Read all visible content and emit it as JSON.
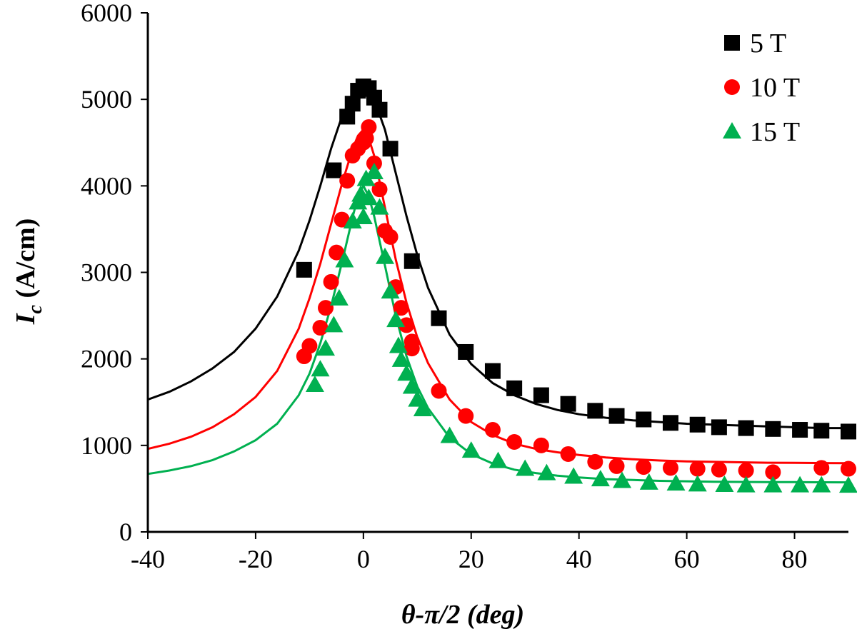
{
  "chart_data": {
    "type": "scatter",
    "title": "",
    "xlabel": "θ-π/2 (deg)",
    "ylabel_main": "I",
    "ylabel_sub": "c",
    "ylabel_units": " (A/cm)",
    "xlim": [
      -40,
      90
    ],
    "ylim": [
      0,
      6000
    ],
    "xticks": [
      -40,
      -20,
      0,
      20,
      40,
      60,
      80
    ],
    "yticks": [
      0,
      1000,
      2000,
      3000,
      4000,
      5000,
      6000
    ],
    "grid": false,
    "legend_position": "top-right",
    "series": [
      {
        "name": "5 T",
        "marker": "square",
        "color": "#000000",
        "points": [
          [
            -11,
            3030
          ],
          [
            -5.5,
            4180
          ],
          [
            -3,
            4800
          ],
          [
            -2,
            4950
          ],
          [
            -1,
            5100
          ],
          [
            0,
            5150
          ],
          [
            0.5,
            5120
          ],
          [
            1,
            5130
          ],
          [
            2,
            5020
          ],
          [
            3,
            4880
          ],
          [
            5,
            4430
          ],
          [
            9,
            3130
          ],
          [
            14,
            2470
          ],
          [
            19,
            2080
          ],
          [
            24,
            1860
          ],
          [
            28,
            1660
          ],
          [
            33,
            1580
          ],
          [
            38,
            1480
          ],
          [
            43,
            1400
          ],
          [
            47,
            1340
          ],
          [
            52,
            1300
          ],
          [
            57,
            1260
          ],
          [
            62,
            1240
          ],
          [
            66,
            1210
          ],
          [
            71,
            1200
          ],
          [
            76,
            1190
          ],
          [
            81,
            1180
          ],
          [
            85,
            1170
          ],
          [
            90,
            1160
          ]
        ],
        "fit_x": [
          -40,
          -36,
          -32,
          -28,
          -24,
          -20,
          -16,
          -12,
          -10,
          -8,
          -6,
          -4,
          -2,
          -1,
          0,
          1,
          2,
          4,
          6,
          8,
          10,
          12,
          16,
          20,
          24,
          28,
          32,
          36,
          40,
          45,
          50,
          55,
          60,
          65,
          70,
          75,
          80,
          85,
          90
        ],
        "fit_y": [
          1530,
          1620,
          1740,
          1890,
          2080,
          2350,
          2720,
          3250,
          3600,
          4000,
          4430,
          4800,
          5050,
          5100,
          5150,
          5100,
          5000,
          4650,
          4150,
          3650,
          3200,
          2820,
          2280,
          1940,
          1720,
          1580,
          1480,
          1410,
          1360,
          1320,
          1290,
          1270,
          1250,
          1240,
          1230,
          1220,
          1210,
          1200,
          1200
        ]
      },
      {
        "name": "10 T",
        "marker": "circle",
        "color": "#ff0000",
        "points": [
          [
            -11,
            2030
          ],
          [
            -10,
            2150
          ],
          [
            -8,
            2360
          ],
          [
            -7,
            2590
          ],
          [
            -6,
            2890
          ],
          [
            -5,
            3230
          ],
          [
            -4,
            3610
          ],
          [
            -3,
            4060
          ],
          [
            -2,
            4350
          ],
          [
            -1,
            4430
          ],
          [
            0,
            4500
          ],
          [
            0.5,
            4550
          ],
          [
            1,
            4680
          ],
          [
            2,
            4260
          ],
          [
            3,
            3960
          ],
          [
            4,
            3480
          ],
          [
            5,
            3410
          ],
          [
            6,
            2830
          ],
          [
            7,
            2590
          ],
          [
            8,
            2390
          ],
          [
            9,
            2200
          ],
          [
            9,
            2120
          ],
          [
            14,
            1630
          ],
          [
            19,
            1340
          ],
          [
            24,
            1180
          ],
          [
            28,
            1040
          ],
          [
            33,
            1000
          ],
          [
            38,
            900
          ],
          [
            43,
            810
          ],
          [
            47,
            760
          ],
          [
            52,
            750
          ],
          [
            57,
            740
          ],
          [
            62,
            730
          ],
          [
            66,
            720
          ],
          [
            71,
            710
          ],
          [
            76,
            690
          ],
          [
            85,
            740
          ],
          [
            90,
            730
          ]
        ],
        "fit_x": [
          -40,
          -36,
          -32,
          -28,
          -24,
          -20,
          -16,
          -12,
          -10,
          -8,
          -6,
          -4,
          -2,
          -1,
          0,
          1,
          2,
          4,
          6,
          8,
          10,
          12,
          16,
          20,
          24,
          28,
          32,
          36,
          40,
          45,
          50,
          55,
          60,
          65,
          70,
          75,
          80,
          85,
          90
        ],
        "fit_y": [
          960,
          1020,
          1100,
          1210,
          1360,
          1560,
          1860,
          2350,
          2700,
          3100,
          3560,
          4020,
          4430,
          4580,
          4650,
          4550,
          4350,
          3750,
          3150,
          2650,
          2250,
          1950,
          1530,
          1270,
          1120,
          1020,
          960,
          920,
          890,
          860,
          840,
          825,
          815,
          810,
          805,
          800,
          798,
          796,
          795
        ]
      },
      {
        "name": "15 T",
        "marker": "triangle",
        "color": "#00b050",
        "points": [
          [
            -9,
            1700
          ],
          [
            -8,
            1880
          ],
          [
            -7,
            2120
          ],
          [
            -5.5,
            2390
          ],
          [
            -4.5,
            2700
          ],
          [
            -3.5,
            3140
          ],
          [
            -2,
            3590
          ],
          [
            -1,
            3810
          ],
          [
            -0.5,
            3900
          ],
          [
            0,
            3640
          ],
          [
            0.5,
            4080
          ],
          [
            1,
            3860
          ],
          [
            2,
            4160
          ],
          [
            3,
            3750
          ],
          [
            4,
            3180
          ],
          [
            5,
            2780
          ],
          [
            6,
            2450
          ],
          [
            6.5,
            2150
          ],
          [
            7,
            1990
          ],
          [
            8,
            1830
          ],
          [
            9,
            1680
          ],
          [
            10,
            1530
          ],
          [
            11,
            1420
          ],
          [
            16,
            1110
          ],
          [
            20,
            940
          ],
          [
            25,
            820
          ],
          [
            30,
            730
          ],
          [
            34,
            680
          ],
          [
            39,
            640
          ],
          [
            44,
            610
          ],
          [
            48,
            590
          ],
          [
            53,
            570
          ],
          [
            58,
            560
          ],
          [
            62,
            550
          ],
          [
            67,
            545
          ],
          [
            71,
            540
          ],
          [
            76,
            540
          ],
          [
            81,
            540
          ],
          [
            85,
            540
          ],
          [
            90,
            535
          ]
        ],
        "fit_x": [
          -40,
          -36,
          -32,
          -28,
          -24,
          -20,
          -16,
          -12,
          -10,
          -8,
          -6,
          -4,
          -2,
          -1,
          0,
          1,
          2,
          4,
          6,
          8,
          10,
          12,
          16,
          20,
          24,
          28,
          32,
          36,
          40,
          45,
          50,
          55,
          60,
          65,
          70,
          75,
          80,
          85,
          90
        ],
        "fit_y": [
          670,
          710,
          760,
          830,
          930,
          1060,
          1250,
          1580,
          1830,
          2180,
          2610,
          3110,
          3640,
          3880,
          4000,
          3880,
          3650,
          3080,
          2500,
          2030,
          1680,
          1430,
          1090,
          900,
          790,
          720,
          680,
          650,
          630,
          610,
          600,
          590,
          585,
          580,
          578,
          576,
          575,
          574,
          573
        ]
      }
    ]
  }
}
